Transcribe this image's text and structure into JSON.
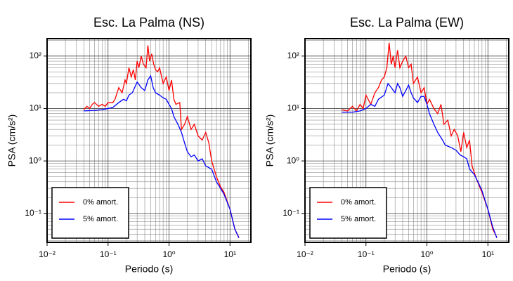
{
  "chart_data": [
    {
      "type": "line",
      "title": "Esc. La Palma (NS)",
      "xlabel": "Periodo (s)",
      "ylabel": "PSA (cm/s²)",
      "xscale": "log",
      "yscale": "log",
      "grid": true,
      "minor_grid": true,
      "legend": "lower left",
      "xlim": [
        0.01,
        22
      ],
      "ylim": [
        0.028,
        215
      ],
      "xticks": [
        {
          "value": 0.01,
          "label": "10⁻²"
        },
        {
          "value": 0.1,
          "label": "10⁻¹"
        },
        {
          "value": 1,
          "label": "10⁰"
        },
        {
          "value": 10,
          "label": "10¹"
        }
      ],
      "yticks": [
        {
          "value": 0.1,
          "label": "10⁻¹"
        },
        {
          "value": 1,
          "label": "10⁰"
        },
        {
          "value": 10,
          "label": "10¹"
        },
        {
          "value": 100,
          "label": "10²"
        }
      ],
      "series": [
        {
          "name": "0% amort.",
          "color": "#ff0000",
          "x": [
            0.04,
            0.045,
            0.05,
            0.055,
            0.06,
            0.07,
            0.08,
            0.09,
            0.1,
            0.12,
            0.13,
            0.15,
            0.17,
            0.19,
            0.2,
            0.22,
            0.24,
            0.26,
            0.28,
            0.3,
            0.32,
            0.35,
            0.38,
            0.42,
            0.45,
            0.48,
            0.52,
            0.56,
            0.6,
            0.65,
            0.7,
            0.8,
            0.9,
            1.0,
            1.1,
            1.2,
            1.3,
            1.5,
            1.6,
            1.8,
            2.0,
            2.3,
            2.6,
            3.0,
            3.5,
            4.0,
            4.5,
            5.0,
            6.0,
            7.0,
            8.0,
            10.0,
            12.0,
            14.0
          ],
          "values": [
            9.5,
            11,
            10,
            12,
            13,
            11,
            12,
            11,
            13,
            13,
            15,
            25,
            20,
            35,
            30,
            60,
            40,
            55,
            35,
            80,
            60,
            100,
            70,
            60,
            160,
            80,
            110,
            70,
            55,
            50,
            60,
            30,
            40,
            22,
            35,
            15,
            12,
            13,
            4,
            5,
            7,
            4,
            5,
            3,
            2.5,
            3.5,
            2.2,
            1.0,
            0.5,
            0.32,
            0.25,
            0.12,
            0.05,
            0.035
          ]
        },
        {
          "name": "5% amort.",
          "color": "#0000ff",
          "x": [
            0.04,
            0.06,
            0.08,
            0.1,
            0.12,
            0.15,
            0.18,
            0.2,
            0.22,
            0.25,
            0.3,
            0.35,
            0.4,
            0.45,
            0.5,
            0.55,
            0.6,
            0.7,
            0.8,
            0.9,
            1.0,
            1.1,
            1.2,
            1.4,
            1.6,
            1.8,
            2.0,
            2.3,
            2.6,
            3.0,
            3.5,
            4.0,
            5.0,
            6.0,
            7.0,
            8.0,
            10.0,
            12.0,
            14.0
          ],
          "values": [
            9,
            9.2,
            9.5,
            10,
            10.5,
            13,
            15,
            14,
            18,
            20,
            32,
            25,
            22,
            35,
            42,
            25,
            20,
            18,
            16,
            15,
            12,
            10,
            7,
            5,
            3.5,
            2.2,
            1.5,
            1.2,
            1.3,
            1.0,
            1.1,
            0.8,
            0.7,
            0.4,
            0.3,
            0.23,
            0.12,
            0.05,
            0.034
          ]
        }
      ]
    },
    {
      "type": "line",
      "title": "Esc. La Palma (EW)",
      "xlabel": "Periodo (s)",
      "ylabel": "PSA (cm/s²)",
      "xscale": "log",
      "yscale": "log",
      "grid": true,
      "minor_grid": true,
      "legend": "lower left",
      "xlim": [
        0.01,
        22
      ],
      "ylim": [
        0.028,
        215
      ],
      "xticks": [
        {
          "value": 0.01,
          "label": "10⁻²"
        },
        {
          "value": 0.1,
          "label": "10⁻¹"
        },
        {
          "value": 1,
          "label": "10⁰"
        },
        {
          "value": 10,
          "label": "10¹"
        }
      ],
      "yticks": [
        {
          "value": 0.1,
          "label": "10⁻¹"
        },
        {
          "value": 1,
          "label": "10⁰"
        },
        {
          "value": 10,
          "label": "10¹"
        },
        {
          "value": 100,
          "label": "10²"
        }
      ],
      "series": [
        {
          "name": "0% amort.",
          "color": "#ff0000",
          "x": [
            0.04,
            0.05,
            0.06,
            0.07,
            0.08,
            0.09,
            0.1,
            0.12,
            0.14,
            0.16,
            0.18,
            0.2,
            0.22,
            0.24,
            0.26,
            0.28,
            0.3,
            0.33,
            0.36,
            0.4,
            0.45,
            0.5,
            0.55,
            0.6,
            0.7,
            0.8,
            0.9,
            1.0,
            1.1,
            1.3,
            1.5,
            1.7,
            1.9,
            2.2,
            2.5,
            2.8,
            3.2,
            3.6,
            4.0,
            4.5,
            5.0,
            5.5,
            6.5,
            8.0,
            10.0,
            12.0,
            14.0
          ],
          "values": [
            9.5,
            9,
            11,
            9,
            12,
            10,
            18,
            12,
            20,
            25,
            35,
            40,
            60,
            180,
            70,
            100,
            60,
            130,
            60,
            80,
            100,
            60,
            70,
            30,
            40,
            20,
            25,
            12,
            15,
            10,
            8,
            12,
            5,
            6,
            3,
            4,
            3,
            1.5,
            3.5,
            1.8,
            2.5,
            0.8,
            0.45,
            0.25,
            0.12,
            0.05,
            0.035
          ]
        },
        {
          "name": "5% amort.",
          "color": "#0000ff",
          "x": [
            0.04,
            0.06,
            0.08,
            0.1,
            0.12,
            0.14,
            0.16,
            0.2,
            0.23,
            0.26,
            0.3,
            0.33,
            0.36,
            0.4,
            0.45,
            0.5,
            0.55,
            0.6,
            0.7,
            0.8,
            0.9,
            1.0,
            1.1,
            1.3,
            1.5,
            1.8,
            2.0,
            2.5,
            3.0,
            3.5,
            4.0,
            4.5,
            5.0,
            6.0,
            7.0,
            8.0,
            10.0,
            12.0,
            14.0
          ],
          "values": [
            8.5,
            8.5,
            9,
            10,
            12,
            11,
            15,
            18,
            30,
            25,
            20,
            30,
            25,
            17,
            22,
            28,
            20,
            16,
            13,
            17,
            17,
            12,
            8,
            5,
            3.5,
            2.5,
            2,
            1.8,
            1.6,
            1.3,
            1.2,
            1.1,
            0.7,
            0.55,
            0.38,
            0.27,
            0.12,
            0.055,
            0.034
          ]
        }
      ]
    }
  ]
}
